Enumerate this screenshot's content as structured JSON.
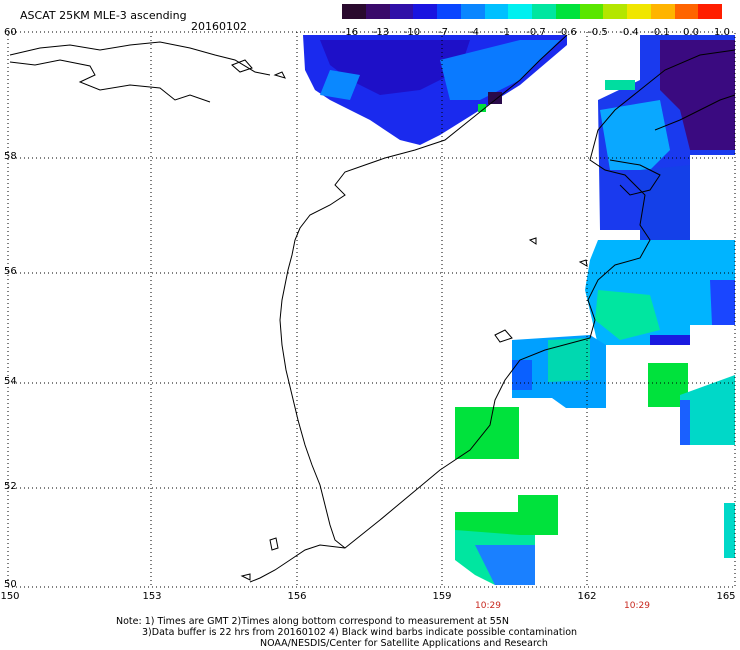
{
  "header": {
    "title": "ASCAT 25KM MLE-3 ascending",
    "date": "20160102"
  },
  "colorbar": {
    "labels": [
      "-16",
      "-13",
      "-10",
      "-7",
      "-4",
      "-1",
      "-0.7",
      "-0.6",
      "-0.5",
      "-0.4",
      "-0.1",
      "0.0",
      "1.0"
    ],
    "colors": [
      "#2a0a2e",
      "#3a0a6a",
      "#3010a8",
      "#1a14e0",
      "#0a46ff",
      "#0a86ff",
      "#00c0ff",
      "#00f0f0",
      "#00e6a0",
      "#00e23c",
      "#5ae600",
      "#b4e600",
      "#f0e600",
      "#ffb400",
      "#ff6400",
      "#ff1e00"
    ]
  },
  "axes": {
    "lat_labels": [
      "60",
      "58",
      "56",
      "54",
      "52",
      "50"
    ],
    "lon_labels": [
      "150",
      "153",
      "156",
      "159",
      "162",
      "165"
    ],
    "time_labels": [
      "10:29",
      "10:29"
    ]
  },
  "notes": {
    "line1": "Note: 1) Times are GMT 2)Times along bottom correspond to measurement at 55N",
    "line2": "3)Data buffer is 22 hrs from 20160102 4) Black wind barbs indicate possible contamination",
    "line3": "NOAA/NESDIS/Center for Satellite Applications and Research"
  }
}
